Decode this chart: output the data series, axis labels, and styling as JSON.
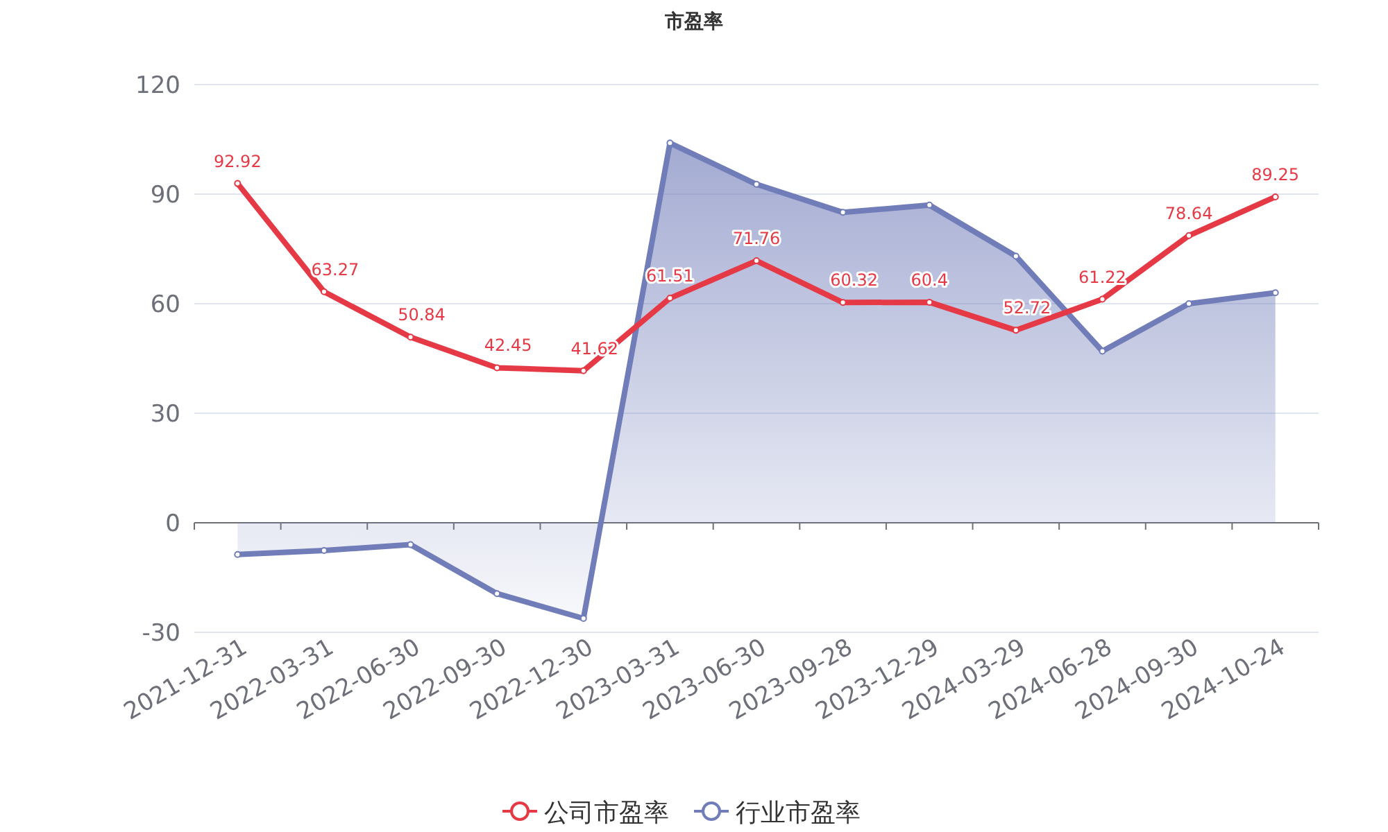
{
  "chart_data": {
    "type": "line",
    "title": "市盈率",
    "categories": [
      "2021-12-31",
      "2022-03-31",
      "2022-06-30",
      "2022-09-30",
      "2022-12-30",
      "2023-03-31",
      "2023-06-30",
      "2023-09-28",
      "2023-12-29",
      "2024-03-29",
      "2024-06-28",
      "2024-09-30",
      "2024-10-24"
    ],
    "series": [
      {
        "name": "公司市盈率",
        "color": "#e63946",
        "values": [
          92.92,
          63.27,
          50.84,
          42.45,
          41.62,
          61.51,
          71.76,
          60.32,
          60.4,
          52.72,
          61.22,
          78.64,
          89.25
        ],
        "value_labels": [
          "92.92",
          "63.27",
          "50.84",
          "42.45",
          "41.62",
          "61.51",
          "71.76",
          "60.32",
          "60.4",
          "52.72",
          "61.22",
          "78.64",
          "89.25"
        ]
      },
      {
        "name": "行业市盈率",
        "type": "area",
        "color": "#717db9",
        "values": [
          -8.7,
          -7.6,
          -6,
          -19.4,
          -26.2,
          104,
          92.7,
          85,
          87,
          73,
          47,
          60,
          63
        ]
      }
    ],
    "ylim": [
      -30,
      120
    ],
    "yticks": [
      -30,
      0,
      30,
      60,
      90,
      120
    ],
    "grid": "y",
    "legend": "bottom",
    "marker": "circle",
    "line_style": "solid"
  }
}
